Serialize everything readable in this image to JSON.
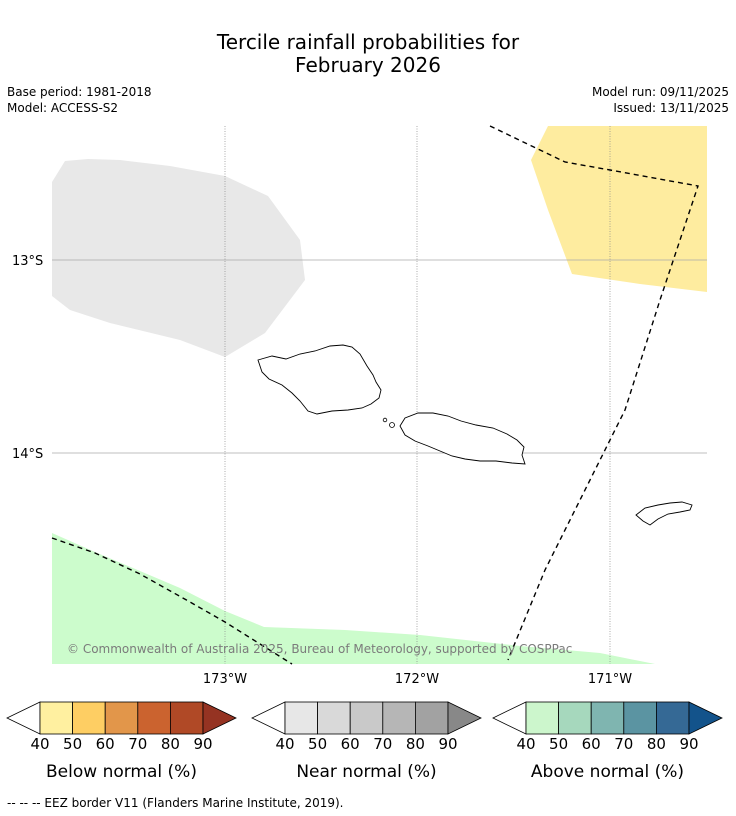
{
  "title_line1": "Tercile rainfall probabilities for",
  "title_line2": "February 2026",
  "base_period": "Base period: 1981-2018",
  "model": "Model: ACCESS-S2",
  "model_run": "Model run: 09/11/2025",
  "issued": "Issued: 13/11/2025",
  "copyright": "© Commonwealth of Australia 2025, Bureau of Meteorology, supported by COSPPac",
  "lat_labels": [
    "13°S",
    "14°S"
  ],
  "lon_labels": [
    "173°W",
    "172°W",
    "171°W"
  ],
  "colorbars": [
    {
      "label": "Below normal (%)",
      "ticks": [
        "40",
        "50",
        "60",
        "70",
        "80",
        "90"
      ],
      "colors": [
        "#fff0a0",
        "#fece63",
        "#e2964a",
        "#cb632f",
        "#b04926",
        "#953322"
      ]
    },
    {
      "label": "Near normal (%)",
      "ticks": [
        "40",
        "50",
        "60",
        "70",
        "80",
        "90"
      ],
      "colors": [
        "#e7e7e7",
        "#d9d9d9",
        "#c9c9c9",
        "#b6b6b6",
        "#a2a2a2",
        "#888888"
      ]
    },
    {
      "label": "Above normal (%)",
      "ticks": [
        "40",
        "50",
        "60",
        "70",
        "80",
        "90"
      ],
      "colors": [
        "#ccf6cc",
        "#a6d8bd",
        "#7fb5b0",
        "#5b94a2",
        "#356995",
        "#13538b"
      ]
    }
  ],
  "legend_note": "-- -- -- EEZ border V11 (Flanders Marine Institute, 2019).",
  "colors": {
    "below": "#feec9f",
    "near": "#e8e8e8",
    "above": "#ccfccc"
  }
}
